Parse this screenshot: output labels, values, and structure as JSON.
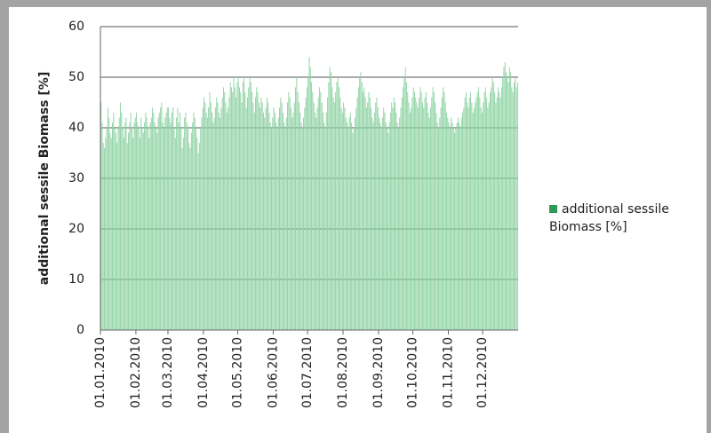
{
  "chart_data": {
    "type": "bar",
    "y_axis_label": "additional sessile Biomass [%]",
    "categories": [
      "01.01.2010",
      null,
      null,
      null,
      null,
      null,
      null,
      null,
      null,
      null,
      null,
      null,
      null,
      null,
      null,
      null,
      null,
      null,
      null,
      null,
      null,
      null,
      null,
      null,
      null,
      null,
      null,
      null,
      null,
      null,
      null,
      "01.02.2010",
      null,
      null,
      null,
      null,
      null,
      null,
      null,
      null,
      null,
      null,
      null,
      null,
      null,
      null,
      null,
      null,
      null,
      null,
      null,
      null,
      null,
      null,
      null,
      null,
      null,
      null,
      null,
      "01.03.2010",
      null,
      null,
      null,
      null,
      null,
      null,
      null,
      null,
      null,
      null,
      null,
      null,
      null,
      null,
      null,
      null,
      null,
      null,
      null,
      null,
      null,
      null,
      null,
      null,
      null,
      null,
      null,
      null,
      null,
      null,
      "01.04.2010",
      null,
      null,
      null,
      null,
      null,
      null,
      null,
      null,
      null,
      null,
      null,
      null,
      null,
      null,
      null,
      null,
      null,
      null,
      null,
      null,
      null,
      null,
      null,
      null,
      null,
      null,
      null,
      null,
      null,
      "01.05.2010",
      null,
      null,
      null,
      null,
      null,
      null,
      null,
      null,
      null,
      null,
      null,
      null,
      null,
      null,
      null,
      null,
      null,
      null,
      null,
      null,
      null,
      null,
      null,
      null,
      null,
      null,
      null,
      null,
      null,
      null,
      "01.06.2010",
      null,
      null,
      null,
      null,
      null,
      null,
      null,
      null,
      null,
      null,
      null,
      null,
      null,
      null,
      null,
      null,
      null,
      null,
      null,
      null,
      null,
      null,
      null,
      null,
      null,
      null,
      null,
      null,
      null,
      "01.07.2010",
      null,
      null,
      null,
      null,
      null,
      null,
      null,
      null,
      null,
      null,
      null,
      null,
      null,
      null,
      null,
      null,
      null,
      null,
      null,
      null,
      null,
      null,
      null,
      null,
      null,
      null,
      null,
      null,
      null,
      null,
      "01.08.2010",
      null,
      null,
      null,
      null,
      null,
      null,
      null,
      null,
      null,
      null,
      null,
      null,
      null,
      null,
      null,
      null,
      null,
      null,
      null,
      null,
      null,
      null,
      null,
      null,
      null,
      null,
      null,
      null,
      null,
      null,
      "01.09.2010",
      null,
      null,
      null,
      null,
      null,
      null,
      null,
      null,
      null,
      null,
      null,
      null,
      null,
      null,
      null,
      null,
      null,
      null,
      null,
      null,
      null,
      null,
      null,
      null,
      null,
      null,
      null,
      null,
      null,
      "01.10.2010",
      null,
      null,
      null,
      null,
      null,
      null,
      null,
      null,
      null,
      null,
      null,
      null,
      null,
      null,
      null,
      null,
      null,
      null,
      null,
      null,
      null,
      null,
      null,
      null,
      null,
      null,
      null,
      null,
      null,
      null,
      "01.11.2010",
      null,
      null,
      null,
      null,
      null,
      null,
      null,
      null,
      null,
      null,
      null,
      null,
      null,
      null,
      null,
      null,
      null,
      null,
      null,
      null,
      null,
      null,
      null,
      null,
      null,
      null,
      null,
      null,
      null,
      "01.12.2010",
      null,
      null,
      null,
      null,
      null,
      null,
      null,
      null,
      null,
      null,
      null,
      null,
      null,
      null,
      null,
      null,
      null,
      null,
      null,
      null,
      null,
      null,
      null,
      null,
      null,
      null,
      null,
      null,
      null,
      null
    ],
    "series": [
      {
        "name": "additional sessile Biomass [%]",
        "color": "#8fd3a4",
        "legend_color": "#2e9a5a",
        "values": [
          45,
          41,
          37,
          36,
          38,
          40,
          44,
          42,
          39,
          38,
          41,
          43,
          40,
          39,
          37,
          40,
          42,
          45,
          43,
          40,
          38,
          41,
          42,
          37,
          39,
          41,
          43,
          40,
          38,
          41,
          42,
          43,
          41,
          40,
          38,
          42,
          40,
          39,
          41,
          43,
          42,
          40,
          38,
          41,
          42,
          44,
          43,
          41,
          40,
          39,
          42,
          43,
          44,
          45,
          41,
          40,
          42,
          43,
          44,
          44,
          42,
          41,
          43,
          44,
          40,
          38,
          42,
          44,
          41,
          43,
          40,
          36,
          38,
          42,
          43,
          41,
          40,
          37,
          36,
          39,
          41,
          43,
          42,
          40,
          38,
          35,
          37,
          40,
          42,
          44,
          46,
          45,
          43,
          42,
          44,
          47,
          45,
          43,
          41,
          42,
          44,
          46,
          45,
          43,
          42,
          44,
          46,
          48,
          47,
          45,
          43,
          44,
          46,
          49,
          48,
          47,
          50,
          48,
          46,
          49,
          50,
          48,
          47,
          45,
          49,
          50,
          47,
          44,
          46,
          48,
          50,
          49,
          47,
          45,
          43,
          46,
          48,
          47,
          45,
          44,
          46,
          45,
          43,
          42,
          44,
          46,
          45,
          43,
          41,
          40,
          42,
          44,
          43,
          41,
          40,
          42,
          44,
          46,
          45,
          43,
          41,
          40,
          42,
          45,
          47,
          46,
          44,
          42,
          43,
          45,
          48,
          50,
          47,
          45,
          43,
          41,
          40,
          42,
          44,
          46,
          48,
          50,
          54,
          52,
          49,
          47,
          45,
          43,
          42,
          44,
          46,
          48,
          47,
          45,
          43,
          41,
          40,
          43,
          46,
          49,
          52,
          51,
          48,
          46,
          45,
          47,
          49,
          50,
          48,
          46,
          44,
          43,
          45,
          44,
          42,
          41,
          40,
          42,
          43,
          41,
          39,
          40,
          42,
          44,
          46,
          48,
          50,
          51,
          49,
          47,
          48,
          46,
          44,
          45,
          47,
          46,
          44,
          42,
          41,
          43,
          45,
          46,
          44,
          42,
          41,
          40,
          42,
          44,
          43,
          41,
          40,
          39,
          41,
          43,
          45,
          44,
          46,
          45,
          43,
          41,
          40,
          42,
          44,
          46,
          48,
          50,
          52,
          49,
          47,
          45,
          43,
          44,
          46,
          48,
          47,
          46,
          45,
          44,
          46,
          48,
          47,
          45,
          44,
          46,
          47,
          45,
          43,
          42,
          44,
          46,
          48,
          47,
          45,
          43,
          41,
          40,
          42,
          44,
          46,
          48,
          47,
          45,
          43,
          42,
          41,
          40,
          42,
          41,
          40,
          39,
          40,
          41,
          42,
          41,
          40,
          42,
          43,
          44,
          46,
          47,
          45,
          44,
          46,
          47,
          45,
          43,
          44,
          45,
          46,
          47,
          48,
          46,
          44,
          43,
          45,
          47,
          48,
          46,
          44,
          45,
          47,
          48,
          50,
          49,
          47,
          45,
          46,
          48,
          47,
          46,
          48,
          50,
          52,
          53,
          51,
          50,
          49,
          52,
          51,
          48,
          47,
          49,
          50,
          48,
          49
        ]
      }
    ],
    "ylim": [
      0,
      60
    ],
    "yticks": [
      0,
      10,
      20,
      30,
      40,
      50,
      60
    ],
    "grid": true,
    "legend": "right"
  }
}
